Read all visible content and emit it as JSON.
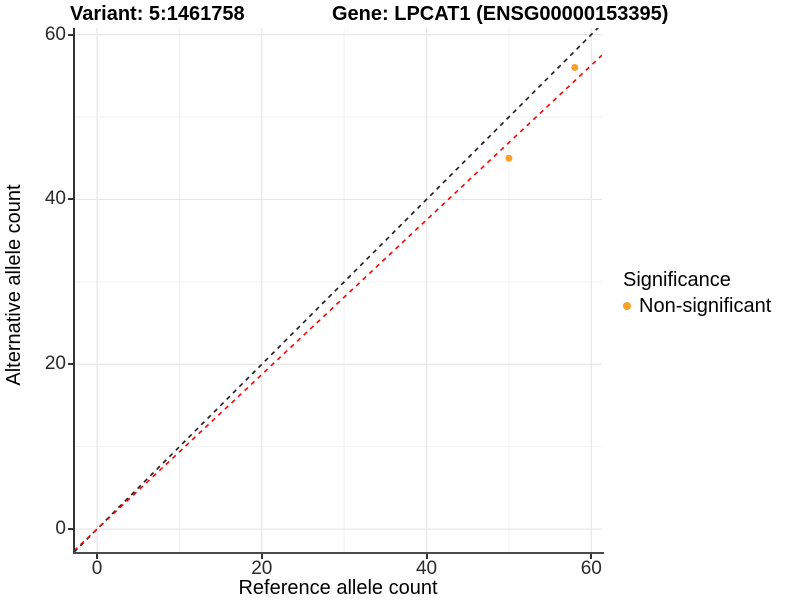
{
  "chart_data": {
    "type": "scatter",
    "titles": [
      "Variant: 5:1461758",
      "Gene: LPCAT1 (ENSG00000153395)"
    ],
    "xlabel": "Reference allele count",
    "ylabel": "Alternative allele count",
    "xlim": [
      -2.8,
      61.3
    ],
    "ylim": [
      -2.9,
      60.8
    ],
    "x_ticks": [
      0,
      20,
      40,
      60
    ],
    "y_ticks": [
      0,
      20,
      40,
      60
    ],
    "x_minor_gridlines": [
      10,
      30,
      50
    ],
    "y_minor_gridlines": [
      10,
      30,
      50
    ],
    "grid": true,
    "background": "#ffffff",
    "major_grid_color": "#e7e7e7",
    "minor_grid_color": "#f2f2f2",
    "point_color": "#F8A029",
    "point_radius": 3.5,
    "points": [
      {
        "x": 50,
        "y": 45,
        "series": "Non-significant"
      },
      {
        "x": 58,
        "y": 56,
        "series": "Non-significant"
      }
    ],
    "lines": [
      {
        "name": "identity",
        "slope": 1.0,
        "intercept": 0,
        "color": "#1a1a1a",
        "style": "dashed"
      },
      {
        "name": "fit",
        "slope": 0.938,
        "intercept": 0,
        "color": "#ff0000",
        "style": "dashed"
      }
    ],
    "legend": {
      "title": "Significance",
      "position": "right",
      "entries": [
        {
          "label": "Non-significant",
          "color": "#F8A029"
        }
      ]
    }
  }
}
